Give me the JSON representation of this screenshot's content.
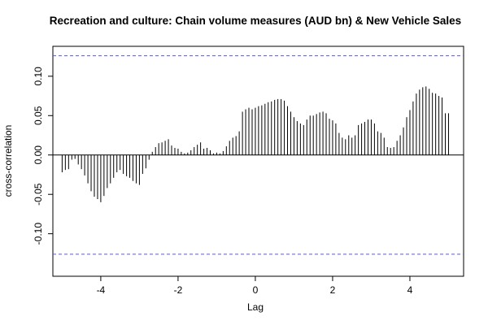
{
  "chart_data": {
    "type": "ccf",
    "title": "Recreation and culture: Chain volume measures (AUD bn) & New Vehicle Sales",
    "x_label": "Lag",
    "y_label": "cross-correlation",
    "x": [
      -5,
      -4.917,
      -4.833,
      -4.75,
      -4.667,
      -4.583,
      -4.5,
      -4.417,
      -4.333,
      -4.25,
      -4.167,
      -4.083,
      -4,
      -3.917,
      -3.833,
      -3.75,
      -3.667,
      -3.583,
      -3.5,
      -3.417,
      -3.333,
      -3.25,
      -3.167,
      -3.083,
      -3,
      -2.917,
      -2.833,
      -2.75,
      -2.667,
      -2.583,
      -2.5,
      -2.417,
      -2.333,
      -2.25,
      -2.167,
      -2.083,
      -2,
      -1.917,
      -1.833,
      -1.75,
      -1.667,
      -1.583,
      -1.5,
      -1.417,
      -1.333,
      -1.25,
      -1.167,
      -1.083,
      -1,
      -0.917,
      -0.833,
      -0.75,
      -0.667,
      -0.583,
      -0.5,
      -0.417,
      -0.333,
      -0.25,
      -0.167,
      -0.083,
      0,
      0.083,
      0.167,
      0.25,
      0.333,
      0.417,
      0.5,
      0.583,
      0.667,
      0.75,
      0.833,
      0.917,
      1,
      1.083,
      1.167,
      1.25,
      1.333,
      1.417,
      1.5,
      1.583,
      1.667,
      1.75,
      1.833,
      1.917,
      2,
      2.083,
      2.167,
      2.25,
      2.333,
      2.417,
      2.5,
      2.583,
      2.667,
      2.75,
      2.833,
      2.917,
      3,
      3.083,
      3.167,
      3.25,
      3.333,
      3.417,
      3.5,
      3.583,
      3.667,
      3.75,
      3.833,
      3.917,
      4,
      4.083,
      4.167,
      4.25,
      4.333,
      4.417,
      4.5,
      4.583,
      4.667,
      4.75,
      4.833,
      4.917,
      5
    ],
    "values": [
      -0.022,
      -0.019,
      -0.018,
      -0.006,
      -0.005,
      -0.012,
      -0.018,
      -0.026,
      -0.036,
      -0.046,
      -0.053,
      -0.056,
      -0.06,
      -0.052,
      -0.042,
      -0.036,
      -0.029,
      -0.022,
      -0.019,
      -0.024,
      -0.027,
      -0.029,
      -0.033,
      -0.036,
      -0.038,
      -0.024,
      -0.017,
      -0.006,
      0.004,
      0.01,
      0.015,
      0.016,
      0.018,
      0.02,
      0.012,
      0.009,
      0.008,
      0.004,
      0.002,
      0.003,
      0.006,
      0.01,
      0.013,
      0.016,
      0.008,
      0.009,
      0.006,
      0.002,
      0.003,
      0.002,
      0.005,
      0.011,
      0.018,
      0.022,
      0.024,
      0.03,
      0.055,
      0.058,
      0.06,
      0.058,
      0.06,
      0.062,
      0.063,
      0.065,
      0.067,
      0.068,
      0.07,
      0.071,
      0.071,
      0.069,
      0.062,
      0.055,
      0.048,
      0.043,
      0.04,
      0.038,
      0.045,
      0.05,
      0.05,
      0.052,
      0.054,
      0.055,
      0.053,
      0.046,
      0.044,
      0.04,
      0.028,
      0.022,
      0.02,
      0.025,
      0.022,
      0.025,
      0.038,
      0.04,
      0.042,
      0.045,
      0.045,
      0.04,
      0.03,
      0.028,
      0.022,
      0.01,
      0.009,
      0.01,
      0.018,
      0.025,
      0.035,
      0.048,
      0.057,
      0.068,
      0.078,
      0.083,
      0.086,
      0.087,
      0.084,
      0.079,
      0.078,
      0.075,
      0.073,
      0.053,
      0.053
    ],
    "color": "#000000",
    "confidence_lines": [
      0.126,
      -0.126
    ],
    "confidence_color": "#5b5bd6",
    "xlim": [
      -5.24,
      5.39
    ],
    "ylim": [
      -0.154,
      0.138
    ],
    "xticks": [
      -4,
      -2,
      0,
      2,
      4
    ],
    "yticks": [
      {
        "value": -0.1,
        "label": "-0.10"
      },
      {
        "value": -0.05,
        "label": "-0.05"
      },
      {
        "value": 0,
        "label": "0.00"
      },
      {
        "value": 0.05,
        "label": "0.05"
      },
      {
        "value": 0.1,
        "label": "0.10"
      }
    ]
  }
}
